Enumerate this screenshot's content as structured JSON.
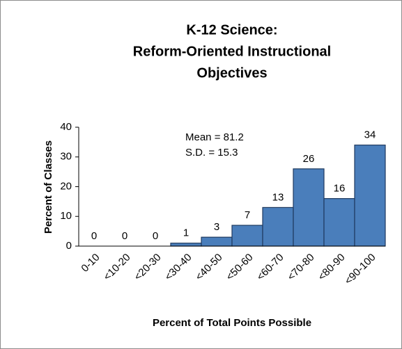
{
  "chart_data": {
    "type": "bar",
    "title": [
      "K-12 Science:",
      "Reform-Oriented Instructional",
      "Objectives"
    ],
    "annotations": [
      "Mean = 81.2",
      "S.D. = 15.3"
    ],
    "xlabel": "Percent of Total Points Possible",
    "ylabel": "Percent of Classes",
    "categories": [
      "0-10",
      "<10-20",
      "<20-30",
      "<30-40",
      "<40-50",
      "<50-60",
      "<60-70",
      "<70-80",
      "<80-90",
      "<90-100"
    ],
    "values": [
      0,
      0,
      0,
      1,
      3,
      7,
      13,
      26,
      16,
      34
    ],
    "color": "#4a7ebb",
    "ylim": [
      0,
      40
    ],
    "yticks": [
      0,
      10,
      20,
      30,
      40
    ],
    "grid": false
  }
}
